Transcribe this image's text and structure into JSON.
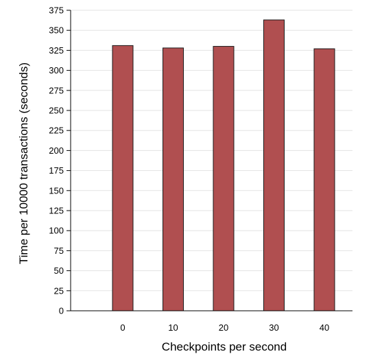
{
  "chart_data": {
    "type": "bar",
    "title": "",
    "xlabel": "Checkpoints per second",
    "ylabel": "Time per 10000 transactions (seconds)",
    "categories": [
      "0",
      "10",
      "20",
      "30",
      "40"
    ],
    "series": [
      {
        "values": [
          331,
          328,
          330,
          363,
          327
        ]
      }
    ],
    "ylim": [
      0,
      375
    ],
    "yticks": [
      0,
      25,
      50,
      75,
      100,
      125,
      150,
      175,
      200,
      225,
      250,
      275,
      300,
      325,
      350,
      375
    ],
    "grid": "horizontal",
    "legend": "none",
    "colors": {
      "bar_fill": "#b04f50",
      "bar_stroke": "#1a1a1a",
      "grid": "#e3e3e3",
      "axis": "#000000"
    }
  }
}
